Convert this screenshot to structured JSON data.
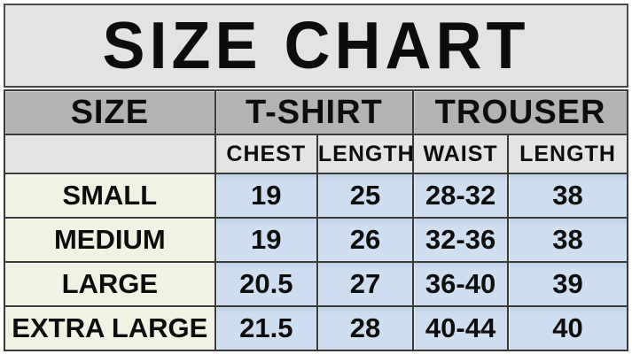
{
  "title": "SIZE CHART",
  "table": {
    "header": {
      "size_label": "SIZE",
      "groups": [
        {
          "label": "T-SHIRT"
        },
        {
          "label": "TROUSER"
        }
      ],
      "sub_columns": [
        "CHEST",
        "LENGTH",
        "WAIST",
        "LENGTH"
      ]
    },
    "rows": [
      {
        "size": "SMALL",
        "values": [
          "19",
          "25",
          "28-32",
          "38"
        ]
      },
      {
        "size": "MEDIUM",
        "values": [
          "19",
          "26",
          "32-36",
          "38"
        ]
      },
      {
        "size": "LARGE",
        "values": [
          "20.5",
          "27",
          "36-40",
          "39"
        ]
      },
      {
        "size": "EXTRA LARGE",
        "values": [
          "21.5",
          "28",
          "40-44",
          "40"
        ]
      }
    ]
  },
  "colors": {
    "title_bg": "#e3e3e1",
    "header_bg": "#b3b3b1",
    "subheader_bg": "#e4e4e2",
    "size_column_bg": "#f2f2e4",
    "data_cell_bg": "#cfddf1",
    "border": "#3a3a38",
    "text": "#0d0d0d"
  }
}
